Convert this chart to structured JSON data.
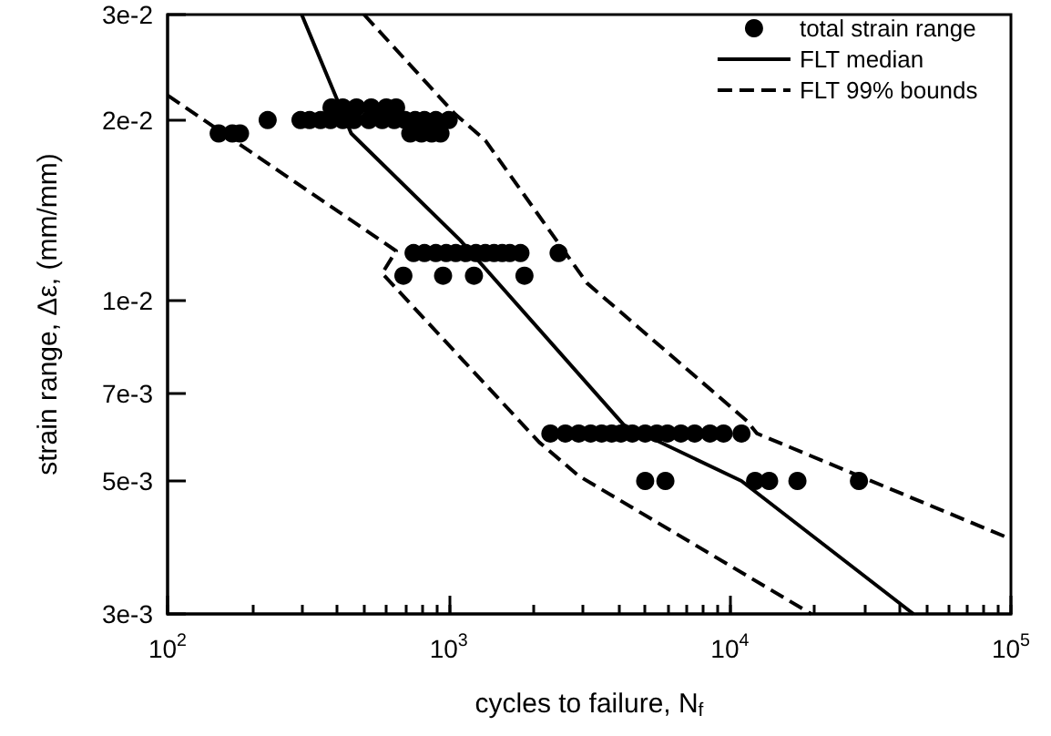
{
  "chart_data": {
    "type": "scatter",
    "xlabel": "cycles to failure, N$_{f}$",
    "ylabel": "strain range, Δε, (mm/mm)",
    "log": "xy",
    "xlim": [
      100,
      100000
    ],
    "ylim": [
      0.003,
      0.03
    ],
    "xticks": [
      {
        "value": 100,
        "label": "10$^{2}$"
      },
      {
        "value": 200,
        "label": null
      },
      {
        "value": 300,
        "label": null
      },
      {
        "value": 400,
        "label": null
      },
      {
        "value": 500,
        "label": null
      },
      {
        "value": 600,
        "label": null
      },
      {
        "value": 700,
        "label": null
      },
      {
        "value": 800,
        "label": null
      },
      {
        "value": 900,
        "label": null
      },
      {
        "value": 1000,
        "label": "10$^{3}$"
      },
      {
        "value": 2000,
        "label": null
      },
      {
        "value": 3000,
        "label": null
      },
      {
        "value": 4000,
        "label": null
      },
      {
        "value": 5000,
        "label": null
      },
      {
        "value": 6000,
        "label": null
      },
      {
        "value": 7000,
        "label": null
      },
      {
        "value": 8000,
        "label": null
      },
      {
        "value": 9000,
        "label": null
      },
      {
        "value": 10000,
        "label": "10$^{4}$"
      },
      {
        "value": 20000,
        "label": null
      },
      {
        "value": 30000,
        "label": null
      },
      {
        "value": 40000,
        "label": null
      },
      {
        "value": 50000,
        "label": null
      },
      {
        "value": 60000,
        "label": null
      },
      {
        "value": 70000,
        "label": null
      },
      {
        "value": 80000,
        "label": null
      },
      {
        "value": 90000,
        "label": null
      },
      {
        "value": 100000,
        "label": "10$^{5}$"
      }
    ],
    "yticks": [
      {
        "value": 0.003,
        "label": "3e-3"
      },
      {
        "value": 0.005,
        "label": "5e-3"
      },
      {
        "value": 0.007,
        "label": "7e-3"
      },
      {
        "value": 0.01,
        "label": "1e-2"
      },
      {
        "value": 0.02,
        "label": "2e-2"
      },
      {
        "value": 0.03,
        "label": "3e-2"
      }
    ],
    "grid": false,
    "legend": "top right",
    "series": [
      {
        "name": "total strain range",
        "color": "#000000",
        "marker": "circle",
        "x": [
          152,
          170,
          181,
          227,
          297,
          320,
          350,
          380,
          420,
          460,
          520,
          580,
          640,
          700,
          760,
          820,
          900,
          1000,
          383,
          420,
          470,
          530,
          600,
          650,
          730,
          800,
          870,
          935,
          750,
          820,
          900,
          980,
          1060,
          1150,
          1250,
          1350,
          1450,
          1550,
          1650,
          1800,
          2460,
          690,
          955,
          1230,
          1860,
          2300,
          2600,
          2900,
          3200,
          3500,
          3800,
          4100,
          4500,
          5000,
          5500,
          6000,
          6700,
          7500,
          8500,
          9500,
          11000,
          5000,
          5900,
          12300,
          13800,
          17400,
          28800
        ],
        "values": [
          0.019,
          0.019,
          0.019,
          0.02,
          0.02,
          0.02,
          0.02,
          0.02,
          0.02,
          0.02,
          0.02,
          0.02,
          0.02,
          0.02,
          0.02,
          0.02,
          0.02,
          0.02,
          0.021,
          0.021,
          0.021,
          0.021,
          0.021,
          0.021,
          0.019,
          0.019,
          0.019,
          0.019,
          0.012,
          0.012,
          0.012,
          0.012,
          0.012,
          0.012,
          0.012,
          0.012,
          0.012,
          0.012,
          0.012,
          0.012,
          0.012,
          0.011,
          0.011,
          0.011,
          0.011,
          0.006,
          0.006,
          0.006,
          0.006,
          0.006,
          0.006,
          0.006,
          0.006,
          0.006,
          0.006,
          0.006,
          0.006,
          0.006,
          0.006,
          0.006,
          0.006,
          0.005,
          0.005,
          0.005,
          0.005,
          0.005,
          0.005
        ]
      },
      {
        "name": "FLT median",
        "type": "line",
        "color": "#000000",
        "marker": "none",
        "line_style": "solid",
        "x": [
          300,
          450,
          1100,
          4200,
          11000,
          45000
        ],
        "values": [
          0.03,
          0.019,
          0.0126,
          0.0062,
          0.005,
          0.003
        ]
      },
      {
        "name": "FLT 99% bounds",
        "type": "line",
        "color": "#000000",
        "marker": "none",
        "line_style": "dashed",
        "x": [
          500,
          1050,
          1350,
          3100,
          11500,
          12500,
          100000,
          null,
          100,
          650,
          580,
          2100,
          2900,
          19500
        ],
        "values": [
          0.03,
          0.0205,
          0.0185,
          0.0107,
          0.0063,
          0.006,
          0.004,
          null,
          0.022,
          0.0121,
          0.0111,
          0.0058,
          0.0051,
          0.003
        ]
      }
    ]
  }
}
